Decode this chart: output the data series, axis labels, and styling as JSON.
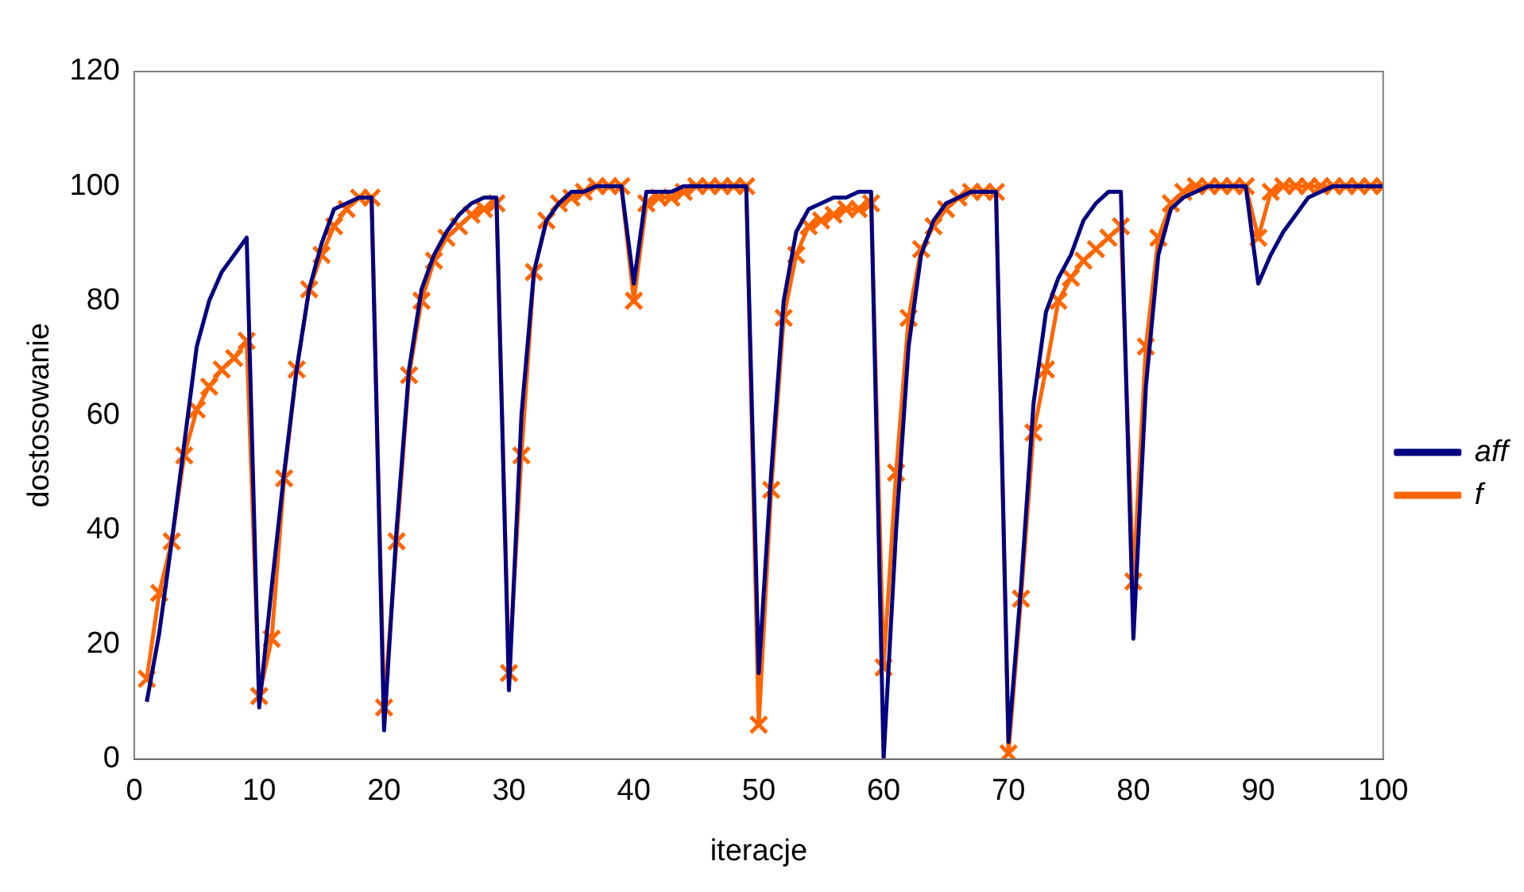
{
  "chart_data": {
    "type": "line",
    "xlabel": "iteracje",
    "ylabel": "dostosowanie",
    "x": [
      1,
      2,
      3,
      4,
      5,
      6,
      7,
      8,
      9,
      10,
      11,
      12,
      13,
      14,
      15,
      16,
      17,
      18,
      19,
      20,
      21,
      22,
      23,
      24,
      25,
      26,
      27,
      28,
      29,
      30,
      31,
      32,
      33,
      34,
      35,
      36,
      37,
      38,
      39,
      40,
      41,
      42,
      43,
      44,
      45,
      46,
      47,
      48,
      49,
      50,
      51,
      52,
      53,
      54,
      55,
      56,
      57,
      58,
      59,
      60,
      61,
      62,
      63,
      64,
      65,
      66,
      67,
      68,
      69,
      70,
      71,
      72,
      73,
      74,
      75,
      76,
      77,
      78,
      79,
      80,
      81,
      82,
      83,
      84,
      85,
      86,
      87,
      88,
      89,
      90,
      91,
      92,
      93,
      94,
      95,
      96,
      97,
      98,
      99,
      100
    ],
    "series": [
      {
        "name": "aff",
        "color": "#000080",
        "marker": "none",
        "values": [
          10,
          22,
          38,
          55,
          72,
          80,
          85,
          88,
          91,
          9,
          30,
          50,
          68,
          82,
          90,
          96,
          97,
          98,
          98,
          5,
          40,
          68,
          82,
          88,
          92,
          95,
          97,
          98,
          98,
          12,
          60,
          85,
          94,
          97,
          99,
          99,
          100,
          100,
          100,
          83,
          99,
          99,
          99,
          100,
          100,
          100,
          100,
          100,
          100,
          15,
          50,
          80,
          92,
          96,
          97,
          98,
          98,
          99,
          99,
          0,
          40,
          72,
          88,
          94,
          97,
          98,
          99,
          99,
          99,
          3,
          30,
          62,
          78,
          84,
          88,
          94,
          97,
          99,
          99,
          21,
          65,
          88,
          96,
          98,
          99,
          100,
          100,
          100,
          100,
          83,
          88,
          92,
          95,
          98,
          99,
          100,
          100,
          100,
          100,
          100
        ]
      },
      {
        "name": "f",
        "color": "#ff6600",
        "marker": "cross",
        "values": [
          14,
          29,
          38,
          53,
          61,
          65,
          68,
          70,
          73,
          11,
          21,
          49,
          68,
          82,
          88,
          93,
          96,
          98,
          98,
          9,
          38,
          67,
          80,
          87,
          91,
          93,
          95,
          96,
          97,
          15,
          53,
          85,
          94,
          97,
          98,
          99,
          100,
          100,
          100,
          80,
          97,
          98,
          98,
          99,
          100,
          100,
          100,
          100,
          100,
          6,
          47,
          77,
          88,
          93,
          94,
          95,
          96,
          96,
          97,
          16,
          50,
          77,
          89,
          93,
          96,
          98,
          99,
          99,
          99,
          1,
          28,
          57,
          68,
          80,
          84,
          87,
          89,
          91,
          93,
          31,
          72,
          91,
          97,
          99,
          100,
          100,
          100,
          100,
          100,
          91,
          99,
          100,
          100,
          100,
          100,
          100,
          100,
          100,
          100,
          100
        ]
      }
    ],
    "xlim": [
      0,
      100
    ],
    "xticks": [
      0,
      10,
      20,
      30,
      40,
      50,
      60,
      70,
      80,
      90,
      100
    ],
    "ylim": [
      0,
      120
    ],
    "yticks": [
      0,
      20,
      40,
      60,
      80,
      100,
      120
    ],
    "grid": false,
    "legend": "right",
    "line_style": "solid"
  }
}
